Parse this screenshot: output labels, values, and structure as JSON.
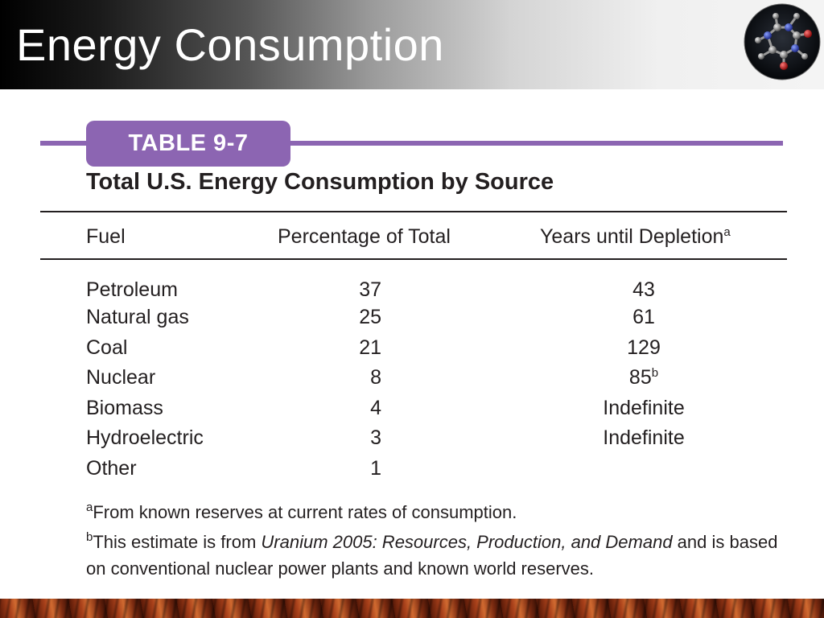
{
  "header": {
    "title": "Energy Consumption"
  },
  "table": {
    "tab_label": "TABLE 9-7",
    "caption": "Total U.S. Energy Consumption by Source",
    "columns": {
      "fuel": "Fuel",
      "percentage": "Percentage of Total",
      "years": "Years until Depletion",
      "years_sup": "a"
    },
    "rows": [
      {
        "fuel": "Petroleum",
        "percentage": "37",
        "years": "43",
        "years_sup": ""
      },
      {
        "fuel": "Natural gas",
        "percentage": "25",
        "years": "61",
        "years_sup": ""
      },
      {
        "fuel": "Coal",
        "percentage": "21",
        "years": "129",
        "years_sup": ""
      },
      {
        "fuel": "Nuclear",
        "percentage": "8",
        "years": "85",
        "years_sup": "b"
      },
      {
        "fuel": "Biomass",
        "percentage": "4",
        "years": "Indefinite",
        "years_sup": ""
      },
      {
        "fuel": "Hydroelectric",
        "percentage": "3",
        "years": "Indefinite",
        "years_sup": ""
      },
      {
        "fuel": "Other",
        "percentage": "1",
        "years": "",
        "years_sup": ""
      }
    ]
  },
  "footnotes": {
    "a": {
      "marker": "a",
      "text": "From known reserves at current rates of consumption."
    },
    "b": {
      "marker": "b",
      "text_before": "This estimate is from ",
      "title_italic": "Uranium 2005: Resources, Production, and Demand",
      "text_after": " and is based on conventional nuclear power plants and known world reserves."
    }
  },
  "colors": {
    "accent_purple": "#8c65b2",
    "text": "#231f20"
  },
  "icons": {
    "badge": "molecule-icon"
  }
}
